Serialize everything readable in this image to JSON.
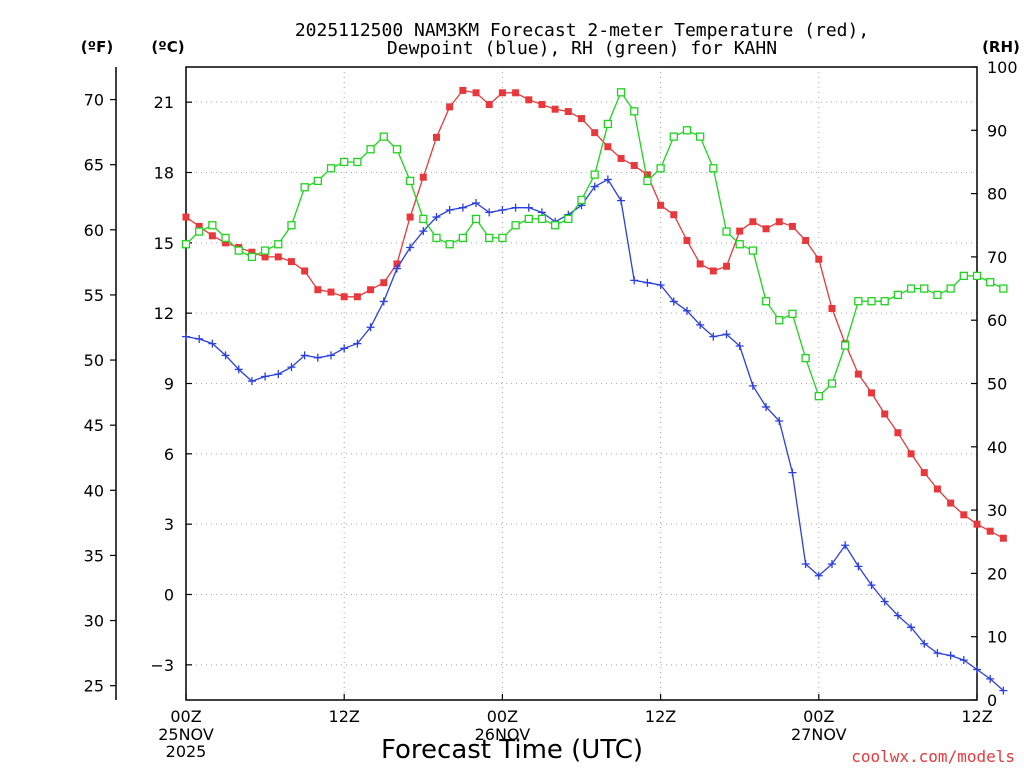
{
  "chart_data": {
    "type": "line",
    "title_line1": "2025112500 NAM3KM Forecast 2-meter Temperature (red),",
    "title_line2": "Dewpoint (blue), RH (green) for KAHN",
    "xlabel": "Forecast Time (UTC)",
    "watermark": "coolwx.com/models",
    "left_unit_f": "(ºF)",
    "left_unit_c": "(ºC)",
    "right_unit": "(RH)",
    "x_range_hours": [
      0,
      60
    ],
    "y_celsius_range": [
      -4.5,
      22.5
    ],
    "y_rh_range": [
      0,
      100
    ],
    "x_ticks": [
      {
        "hour": 0,
        "label": "00Z",
        "sub1": "25NOV",
        "sub2": "2025"
      },
      {
        "hour": 12,
        "label": "12Z",
        "sub1": "",
        "sub2": ""
      },
      {
        "hour": 24,
        "label": "00Z",
        "sub1": "26NOV",
        "sub2": ""
      },
      {
        "hour": 36,
        "label": "12Z",
        "sub1": "",
        "sub2": ""
      },
      {
        "hour": 48,
        "label": "00Z",
        "sub1": "27NOV",
        "sub2": ""
      },
      {
        "hour": 60,
        "label": "12Z",
        "sub1": "",
        "sub2": ""
      }
    ],
    "c_ticks": [
      -3,
      0,
      3,
      6,
      9,
      12,
      15,
      18,
      21
    ],
    "f_ticks": [
      25,
      30,
      35,
      40,
      45,
      50,
      55,
      60,
      65,
      70
    ],
    "rh_ticks": [
      0,
      10,
      20,
      30,
      40,
      50,
      60,
      70,
      80,
      90,
      100
    ],
    "series": [
      {
        "name": "2-meter Temperature (°C)",
        "color": "#e8383b",
        "marker": "filled-square",
        "axis": "celsius",
        "values": [
          16.1,
          15.7,
          15.3,
          15.0,
          14.8,
          14.6,
          14.4,
          14.4,
          14.2,
          13.8,
          13.0,
          12.9,
          12.7,
          12.7,
          13.0,
          13.3,
          14.1,
          16.1,
          17.8,
          19.5,
          20.8,
          21.5,
          21.4,
          20.9,
          21.4,
          21.4,
          21.1,
          20.9,
          20.7,
          20.6,
          20.3,
          19.7,
          19.1,
          18.6,
          18.3,
          17.9,
          16.6,
          16.2,
          15.1,
          14.1,
          13.8,
          14.0,
          15.5,
          15.9,
          15.6,
          15.9,
          15.7,
          15.1,
          14.3,
          12.2,
          10.7,
          9.4,
          8.6,
          7.7,
          6.9,
          6.0,
          5.2,
          4.5,
          3.9,
          3.4,
          3.0,
          2.7,
          2.4
        ]
      },
      {
        "name": "Dewpoint (°C)",
        "color": "#2a3fe0",
        "marker": "plus",
        "axis": "celsius",
        "values": [
          11.0,
          10.9,
          10.7,
          10.2,
          9.6,
          9.1,
          9.3,
          9.4,
          9.7,
          10.2,
          10.1,
          10.2,
          10.5,
          10.7,
          11.4,
          12.5,
          13.9,
          14.8,
          15.5,
          16.1,
          16.4,
          16.5,
          16.7,
          16.3,
          16.4,
          16.5,
          16.5,
          16.3,
          15.9,
          16.2,
          16.6,
          17.4,
          17.7,
          16.8,
          13.4,
          13.3,
          13.2,
          12.5,
          12.1,
          11.5,
          11.0,
          11.1,
          10.6,
          8.9,
          8.0,
          7.4,
          5.2,
          1.3,
          0.8,
          1.3,
          2.1,
          1.2,
          0.4,
          -0.3,
          -0.9,
          -1.4,
          -2.1,
          -2.5,
          -2.6,
          -2.8,
          -3.2,
          -3.6,
          -4.1
        ]
      },
      {
        "name": "RH (%)",
        "color": "#1ed41e",
        "marker": "open-square",
        "axis": "rh",
        "values": [
          72,
          74,
          75,
          73,
          71,
          70,
          71,
          72,
          75,
          81,
          82,
          84,
          85,
          85,
          87,
          89,
          87,
          82,
          76,
          73,
          72,
          73,
          76,
          73,
          73,
          75,
          76,
          76,
          75,
          76,
          79,
          83,
          91,
          96,
          93,
          82,
          84,
          89,
          90,
          89,
          84,
          74,
          72,
          71,
          63,
          60,
          61,
          54,
          48,
          50,
          56,
          63,
          63,
          63,
          64,
          65,
          65,
          64,
          65,
          67,
          67,
          66,
          65
        ]
      }
    ]
  }
}
